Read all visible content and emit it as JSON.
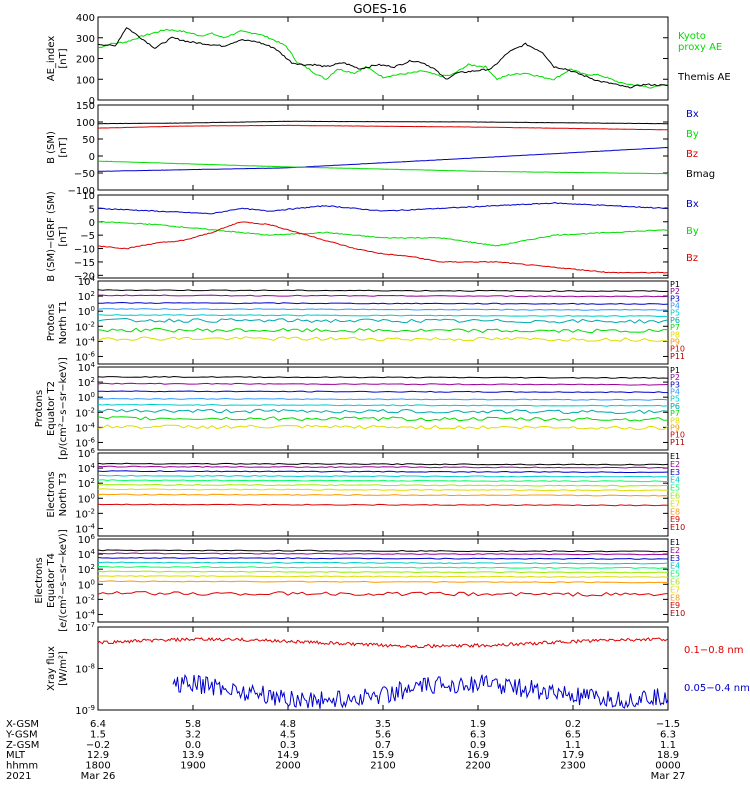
{
  "title": "GOES-16",
  "colors": {
    "black": "#000000",
    "green": "#00dd00",
    "blue": "#0000cc",
    "red": "#dd0000",
    "cyan": "#00cccc",
    "lightblue": "#3399ff",
    "yellow": "#dddd00",
    "orange": "#ff9900",
    "darkred": "#aa0000"
  },
  "chart_data": [
    {
      "type": "line",
      "id": "ae",
      "ylabel": "AE_index\n[nT]",
      "ylim": [
        0,
        400
      ],
      "yticks": [
        "400",
        "300",
        "200",
        "100",
        "0"
      ],
      "ytickvals": [
        400,
        300,
        200,
        100,
        0
      ],
      "series": [
        {
          "name": "Kyoto\nproxy AE",
          "color": "#00dd00",
          "x": [
            0,
            0.02,
            0.05,
            0.08,
            0.12,
            0.15,
            0.18,
            0.2,
            0.22,
            0.25,
            0.28,
            0.3,
            0.33,
            0.35,
            0.37,
            0.38,
            0.4,
            0.42,
            0.45,
            0.47,
            0.5,
            0.52,
            0.55,
            0.57,
            0.6,
            0.62,
            0.65,
            0.68,
            0.7,
            0.72,
            0.75,
            0.78,
            0.8,
            0.83,
            0.85,
            0.88,
            0.9,
            0.92,
            0.95,
            0.97,
            1.0
          ],
          "y": [
            250,
            270,
            280,
            310,
            340,
            330,
            310,
            320,
            300,
            330,
            320,
            300,
            260,
            180,
            150,
            130,
            100,
            150,
            130,
            160,
            110,
            120,
            130,
            140,
            115,
            120,
            170,
            160,
            100,
            120,
            130,
            110,
            100,
            150,
            125,
            120,
            100,
            80,
            70,
            60,
            75
          ]
        },
        {
          "name": "Themis AE",
          "color": "#000000",
          "x": [
            0,
            0.03,
            0.05,
            0.07,
            0.1,
            0.13,
            0.16,
            0.19,
            0.22,
            0.25,
            0.28,
            0.31,
            0.34,
            0.36,
            0.38,
            0.4,
            0.43,
            0.46,
            0.49,
            0.52,
            0.55,
            0.57,
            0.59,
            0.61,
            0.63,
            0.66,
            0.69,
            0.72,
            0.75,
            0.78,
            0.8,
            0.82,
            0.85,
            0.88,
            0.9,
            0.93,
            0.96,
            1.0
          ],
          "y": [
            270,
            260,
            350,
            310,
            250,
            300,
            280,
            270,
            260,
            290,
            280,
            250,
            180,
            170,
            170,
            160,
            180,
            150,
            170,
            160,
            190,
            180,
            150,
            100,
            130,
            140,
            150,
            230,
            270,
            230,
            160,
            150,
            120,
            90,
            80,
            60,
            75,
            70
          ]
        }
      ]
    },
    {
      "type": "line",
      "id": "bsm",
      "ylabel": "B (SM)\n[nT]",
      "ylim": [
        -100,
        150
      ],
      "yticks": [
        "150",
        "100",
        "50",
        "0",
        "−50",
        "−100"
      ],
      "ytickvals": [
        150,
        100,
        50,
        0,
        -50,
        -100
      ],
      "series": [
        {
          "name": "Bx",
          "color": "#0000cc",
          "x": [
            0,
            0.33,
            0.67,
            1.0
          ],
          "y": [
            -45,
            -35,
            -5,
            25
          ]
        },
        {
          "name": "By",
          "color": "#00dd00",
          "x": [
            0,
            0.33,
            0.67,
            1.0
          ],
          "y": [
            -15,
            -32,
            -45,
            -52
          ]
        },
        {
          "name": "Bz",
          "color": "#dd0000",
          "x": [
            0,
            0.15,
            0.33,
            0.67,
            1.0
          ],
          "y": [
            82,
            88,
            90,
            85,
            77
          ]
        },
        {
          "name": "Bmag",
          "color": "#000000",
          "x": [
            0,
            0.15,
            0.33,
            0.67,
            1.0
          ],
          "y": [
            95,
            97,
            102,
            100,
            95
          ]
        }
      ]
    },
    {
      "type": "line",
      "id": "igrf",
      "ylabel": "B (SM)−IGRF (SM)\n[nT]",
      "ylim": [
        -21,
        10
      ],
      "yticks": [
        "10",
        "5",
        "0",
        "−5",
        "−10",
        "−15",
        "−20"
      ],
      "ytickvals": [
        10,
        5,
        0,
        -5,
        -10,
        -15,
        -20
      ],
      "series": [
        {
          "name": "Bx",
          "color": "#0000cc",
          "x": [
            0,
            0.1,
            0.2,
            0.25,
            0.3,
            0.4,
            0.5,
            0.6,
            0.7,
            0.8,
            0.9,
            1.0
          ],
          "y": [
            5,
            4,
            3,
            5,
            4,
            6,
            4,
            5,
            6,
            7,
            6,
            5
          ]
        },
        {
          "name": "By",
          "color": "#00dd00",
          "x": [
            0,
            0.1,
            0.2,
            0.3,
            0.4,
            0.5,
            0.6,
            0.7,
            0.75,
            0.8,
            0.9,
            1.0
          ],
          "y": [
            0,
            -1,
            -3,
            -5,
            -4,
            -6,
            -6,
            -9,
            -7,
            -5,
            -4,
            -3
          ]
        },
        {
          "name": "Bz",
          "color": "#dd0000",
          "x": [
            0,
            0.05,
            0.1,
            0.15,
            0.2,
            0.25,
            0.3,
            0.35,
            0.4,
            0.45,
            0.5,
            0.55,
            0.6,
            0.7,
            0.8,
            0.9,
            1.0
          ],
          "y": [
            -9,
            -10,
            -8,
            -7,
            -4,
            0,
            -1,
            -4,
            -7,
            -10,
            -12,
            -13,
            -15,
            -15,
            -17,
            -19,
            -19
          ]
        }
      ]
    },
    {
      "type": "line",
      "id": "pn",
      "ylabel": "Protons\nNorth T1",
      "ylog": true,
      "ylim": [
        -7,
        4
      ],
      "yticks": [
        "10^4",
        "10^2",
        "10^0",
        "10^-2",
        "10^-4",
        "10^-6"
      ],
      "ytickvals": [
        4,
        2,
        0,
        -2,
        -4,
        -6
      ],
      "series": [
        {
          "name": "P1",
          "color": "#000000",
          "level": 2.8
        },
        {
          "name": "P2",
          "color": "#990099",
          "level": 2.1
        },
        {
          "name": "P3",
          "color": "#0000cc",
          "level": 1.1
        },
        {
          "name": "P4",
          "color": "#3399ff",
          "level": 0.3
        },
        {
          "name": "P5",
          "color": "#00cccc",
          "level": -0.5
        },
        {
          "name": "P6",
          "color": "#00aaaa",
          "level": -1.2
        },
        {
          "name": "P7",
          "color": "#00dd00",
          "level": -2.5
        },
        {
          "name": "P8",
          "color": "#dddd00",
          "level": -3.6
        },
        {
          "name": "P9",
          "color": "#ff9900"
        },
        {
          "name": "P10",
          "color": "#dd0000"
        },
        {
          "name": "P11",
          "color": "#aa0000"
        }
      ]
    },
    {
      "type": "line",
      "id": "pe",
      "ylabel": "Protons\nEquator T2\n[p/(cm²−s−sr−keV)]",
      "ylog": true,
      "ylim": [
        -7,
        4
      ],
      "yticks": [
        "10^4",
        "10^2",
        "10^0",
        "10^-2",
        "10^-4",
        "10^-6"
      ],
      "ytickvals": [
        4,
        2,
        0,
        -2,
        -4,
        -6
      ],
      "series": [
        {
          "name": "P1",
          "color": "#000000",
          "level": 2.7
        },
        {
          "name": "P2",
          "color": "#990099",
          "level": 1.8
        },
        {
          "name": "P3",
          "color": "#0000cc",
          "level": 0.8
        },
        {
          "name": "P4",
          "color": "#3399ff",
          "level": -0.2
        },
        {
          "name": "P5",
          "color": "#00cccc",
          "level": -1.0
        },
        {
          "name": "P6",
          "color": "#00aaaa",
          "level": -1.8
        },
        {
          "name": "P7",
          "color": "#00dd00",
          "level": -2.8
        },
        {
          "name": "P8",
          "color": "#dddd00",
          "level": -3.9
        },
        {
          "name": "P9",
          "color": "#ff9900"
        },
        {
          "name": "P10",
          "color": "#dd0000"
        },
        {
          "name": "P11",
          "color": "#aa0000"
        }
      ]
    },
    {
      "type": "line",
      "id": "en",
      "ylabel": "Electrons\nNorth T3",
      "ylog": true,
      "ylim": [
        -5,
        6
      ],
      "yticks": [
        "10^6",
        "10^4",
        "10^2",
        "10^0",
        "10^-2",
        "10^-4"
      ],
      "ytickvals": [
        6,
        4,
        2,
        0,
        -2,
        -4
      ],
      "series": [
        {
          "name": "E1",
          "color": "#000000",
          "level": 4.6
        },
        {
          "name": "E2",
          "color": "#990099",
          "level": 4.2
        },
        {
          "name": "E3",
          "color": "#0000cc",
          "level": 3.6
        },
        {
          "name": "E4",
          "color": "#00cccc",
          "level": 3.0
        },
        {
          "name": "E5",
          "color": "#00ff66",
          "level": 2.4
        },
        {
          "name": "E6",
          "color": "#99ee00",
          "level": 1.8
        },
        {
          "name": "E7",
          "color": "#dddd00",
          "level": 1.2
        },
        {
          "name": "E8",
          "color": "#ff9900",
          "level": 0.5
        },
        {
          "name": "E9",
          "color": "#dd0000",
          "level": -0.8
        },
        {
          "name": "E10",
          "color": "#aa0000"
        }
      ]
    },
    {
      "type": "line",
      "id": "ee",
      "ylabel": "Electrons\nEquator T4\n[e/(cm²−s−sr−keV)]",
      "ylog": true,
      "ylim": [
        -5,
        6
      ],
      "yticks": [
        "10^6",
        "10^4",
        "10^2",
        "10^0",
        "10^-2",
        "10^-4"
      ],
      "ytickvals": [
        6,
        4,
        2,
        0,
        -2,
        -4
      ],
      "series": [
        {
          "name": "E1",
          "color": "#000000",
          "level": 4.5
        },
        {
          "name": "E2",
          "color": "#990099",
          "level": 4.1
        },
        {
          "name": "E3",
          "color": "#0000cc",
          "level": 3.5
        },
        {
          "name": "E4",
          "color": "#00cccc",
          "level": 2.9
        },
        {
          "name": "E5",
          "color": "#00ff66",
          "level": 2.3
        },
        {
          "name": "E6",
          "color": "#99ee00",
          "level": 1.7
        },
        {
          "name": "E7",
          "color": "#dddd00",
          "level": 1.1
        },
        {
          "name": "E8",
          "color": "#ff9900",
          "level": 0.4
        },
        {
          "name": "E9",
          "color": "#dd0000",
          "level": -1.2
        },
        {
          "name": "E10",
          "color": "#aa0000"
        }
      ]
    },
    {
      "type": "line",
      "id": "xray",
      "ylabel": "Xray flux\n[W/m²]",
      "ylog": true,
      "ylim": [
        -9,
        -7
      ],
      "yticks": [
        "10^-7",
        "10^-8",
        "10^-9"
      ],
      "ytickvals": [
        -7,
        -8,
        -9
      ],
      "series": [
        {
          "name": "0.1−0.8 nm",
          "color": "#dd0000",
          "level": -7.38
        },
        {
          "name": "0.05−0.4 nm",
          "color": "#0000cc",
          "level": -8.65
        }
      ]
    }
  ],
  "xaxis": {
    "rows": [
      {
        "label": "X-GSM",
        "values": [
          "6.4",
          "5.8",
          "4.8",
          "3.5",
          "1.9",
          "0.2",
          "−1.5"
        ]
      },
      {
        "label": "Y-GSM",
        "values": [
          "1.5",
          "3.2",
          "4.5",
          "5.6",
          "6.3",
          "6.5",
          "6.3"
        ]
      },
      {
        "label": "Z-GSM",
        "values": [
          "−0.2",
          "0.0",
          "0.3",
          "0.7",
          "0.9",
          "1.1",
          "1.1"
        ]
      },
      {
        "label": "MLT",
        "values": [
          "12.9",
          "13.9",
          "14.9",
          "15.9",
          "16.9",
          "17.9",
          "18.9"
        ]
      },
      {
        "label": "hhmm",
        "values": [
          "1800",
          "1900",
          "2000",
          "2100",
          "2200",
          "2300",
          "0000"
        ]
      },
      {
        "label": "2021",
        "values": [
          "Mar 26",
          "",
          "",
          "",
          "",
          "",
          "Mar 27"
        ]
      }
    ]
  }
}
